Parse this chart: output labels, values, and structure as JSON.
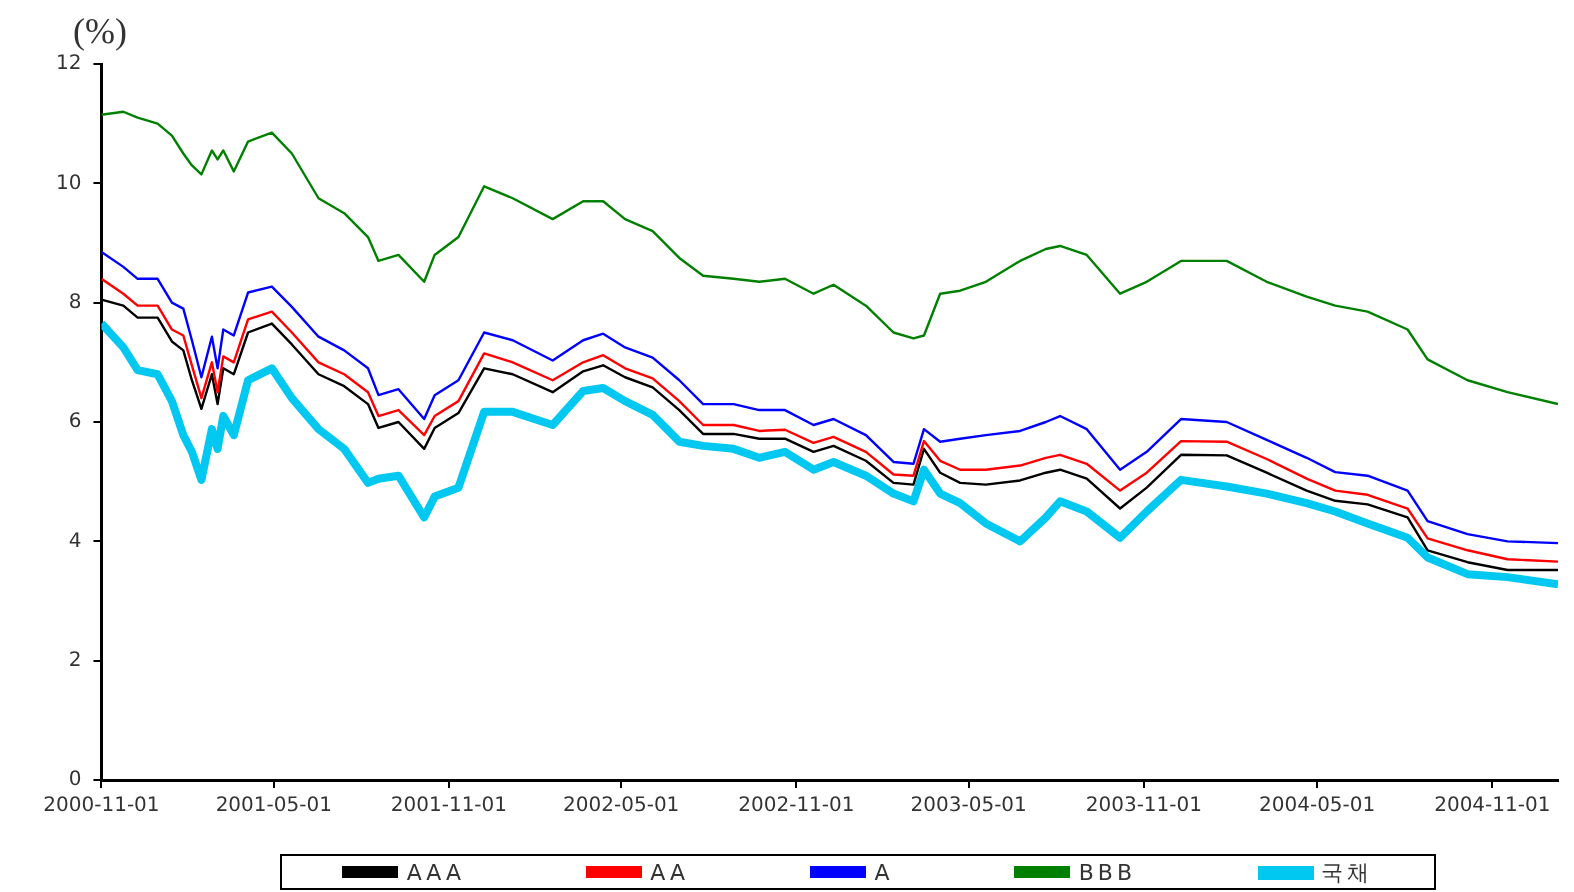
{
  "chart_data": {
    "type": "line",
    "ylabel": "(%)",
    "x": [
      "2000-11-01",
      "2000-11-24",
      "2000-12-09",
      "2000-12-30",
      "2001-01-14",
      "2001-01-26",
      "2001-02-04",
      "2001-02-14",
      "2001-02-25",
      "2001-03-03",
      "2001-03-09",
      "2001-03-20",
      "2001-04-04",
      "2001-04-29",
      "2001-05-20",
      "2001-06-17",
      "2001-07-14",
      "2001-08-08",
      "2001-08-19",
      "2001-09-09",
      "2001-10-06",
      "2001-10-17",
      "2001-11-11",
      "2001-12-08",
      "2002-01-07",
      "2002-02-18",
      "2002-03-22",
      "2002-04-12",
      "2002-05-05",
      "2002-06-03",
      "2002-07-01",
      "2002-07-26",
      "2002-08-27",
      "2002-09-23",
      "2002-10-20",
      "2002-11-19",
      "2002-12-10",
      "2003-01-13",
      "2003-02-11",
      "2003-03-04",
      "2003-03-15",
      "2003-04-01",
      "2003-04-22",
      "2003-05-19",
      "2003-06-24",
      "2003-07-21",
      "2003-08-05",
      "2003-09-02",
      "2003-10-07",
      "2003-11-04",
      "2003-12-10",
      "2004-01-27",
      "2004-03-09",
      "2004-04-20",
      "2004-05-20",
      "2004-06-23",
      "2004-08-04",
      "2004-08-25",
      "2004-10-06",
      "2004-11-17",
      "2005-01-09"
    ],
    "series": [
      {
        "name": "AAA",
        "color": "#000000",
        "values": [
          8.05,
          7.95,
          7.75,
          7.75,
          7.35,
          7.2,
          6.7,
          6.22,
          6.8,
          6.3,
          6.9,
          6.8,
          7.5,
          7.65,
          7.3,
          6.8,
          6.6,
          6.3,
          5.9,
          6.0,
          5.55,
          5.9,
          6.15,
          6.9,
          6.8,
          6.5,
          6.85,
          6.95,
          6.75,
          6.58,
          6.2,
          5.8,
          5.8,
          5.72,
          5.72,
          5.5,
          5.6,
          5.35,
          4.98,
          4.95,
          5.55,
          5.15,
          4.98,
          4.95,
          5.02,
          5.15,
          5.2,
          5.05,
          4.55,
          4.9,
          5.45,
          5.44,
          5.15,
          4.85,
          4.68,
          4.62,
          4.4,
          3.85,
          3.65,
          3.52,
          3.52
        ]
      },
      {
        "name": "AA",
        "color": "#ff0000",
        "values": [
          8.4,
          8.15,
          7.95,
          7.95,
          7.55,
          7.45,
          6.95,
          6.4,
          7.0,
          6.5,
          7.1,
          7.0,
          7.72,
          7.85,
          7.5,
          7.0,
          6.8,
          6.5,
          6.1,
          6.2,
          5.78,
          6.1,
          6.35,
          7.15,
          7.0,
          6.7,
          7.0,
          7.12,
          6.9,
          6.73,
          6.35,
          5.95,
          5.95,
          5.85,
          5.87,
          5.65,
          5.75,
          5.5,
          5.12,
          5.1,
          5.68,
          5.35,
          5.2,
          5.2,
          5.27,
          5.4,
          5.45,
          5.3,
          4.85,
          5.15,
          5.68,
          5.67,
          5.38,
          5.05,
          4.85,
          4.78,
          4.55,
          4.05,
          3.85,
          3.7,
          3.66
        ]
      },
      {
        "name": "A",
        "color": "#0000ff",
        "values": [
          8.85,
          8.6,
          8.4,
          8.4,
          8.0,
          7.9,
          7.37,
          6.75,
          7.43,
          6.9,
          7.55,
          7.45,
          8.17,
          8.27,
          7.93,
          7.43,
          7.2,
          6.9,
          6.45,
          6.55,
          6.05,
          6.45,
          6.7,
          7.5,
          7.37,
          7.03,
          7.37,
          7.48,
          7.25,
          7.08,
          6.7,
          6.3,
          6.3,
          6.2,
          6.2,
          5.95,
          6.05,
          5.78,
          5.33,
          5.3,
          5.88,
          5.67,
          5.72,
          5.78,
          5.85,
          6.0,
          6.1,
          5.88,
          5.2,
          5.5,
          6.05,
          6.0,
          5.7,
          5.4,
          5.16,
          5.1,
          4.85,
          4.34,
          4.12,
          4.0,
          3.97
        ]
      },
      {
        "name": "BBB",
        "color": "#008000",
        "values": [
          11.15,
          11.2,
          11.1,
          11.0,
          10.8,
          10.5,
          10.3,
          10.15,
          10.55,
          10.4,
          10.55,
          10.2,
          10.7,
          10.85,
          10.5,
          9.75,
          9.5,
          9.1,
          8.7,
          8.8,
          8.35,
          8.8,
          9.1,
          9.95,
          9.75,
          9.4,
          9.7,
          9.7,
          9.4,
          9.2,
          8.75,
          8.45,
          8.4,
          8.35,
          8.4,
          8.15,
          8.3,
          7.95,
          7.5,
          7.4,
          7.45,
          8.15,
          8.2,
          8.35,
          8.7,
          8.9,
          8.95,
          8.8,
          8.15,
          8.35,
          8.7,
          8.7,
          8.35,
          8.1,
          7.95,
          7.85,
          7.55,
          7.05,
          6.7,
          6.5,
          6.3
        ]
      },
      {
        "name": "국채",
        "color": "#00c8f0",
        "values": [
          7.65,
          7.25,
          6.87,
          6.8,
          6.35,
          5.78,
          5.5,
          5.03,
          5.88,
          5.55,
          6.1,
          5.78,
          6.7,
          6.9,
          6.4,
          5.88,
          5.55,
          4.98,
          5.05,
          5.1,
          4.4,
          4.75,
          4.9,
          6.17,
          6.17,
          5.95,
          6.52,
          6.57,
          6.35,
          6.12,
          5.67,
          5.6,
          5.55,
          5.4,
          5.5,
          5.2,
          5.33,
          5.1,
          4.8,
          4.67,
          5.2,
          4.8,
          4.64,
          4.3,
          4.0,
          4.4,
          4.67,
          4.5,
          4.06,
          4.5,
          5.03,
          4.92,
          4.8,
          4.64,
          4.5,
          4.3,
          4.06,
          3.73,
          3.45,
          3.4,
          3.28
        ]
      }
    ],
    "xlim": [
      "2000-11-01",
      "2005-01-09"
    ],
    "xticks": [
      "2000-11-01",
      "2001-05-01",
      "2001-11-01",
      "2002-05-01",
      "2002-11-01",
      "2003-05-01",
      "2003-11-01",
      "2004-05-01",
      "2004-11-01"
    ],
    "ylim": [
      0,
      12
    ],
    "yticks": [
      0,
      2,
      4,
      6,
      8,
      10,
      12
    ],
    "grid": false,
    "legend": "bottom",
    "marker": "none",
    "line_style": "solid"
  }
}
